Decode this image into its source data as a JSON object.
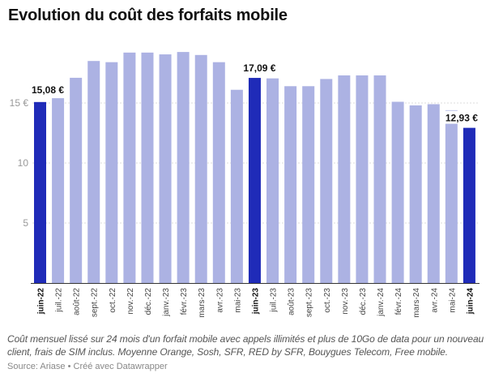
{
  "chart_data": {
    "type": "bar",
    "title": "Evolution du coût des forfaits mobile",
    "categories": [
      "juin-22",
      "juil.-22",
      "août-22",
      "sept.-22",
      "oct.-22",
      "nov.-22",
      "déc.-22",
      "janv.-23",
      "févr.-23",
      "mars-23",
      "avr.-23",
      "mai-23",
      "juin-23",
      "juil.-23",
      "août-23",
      "sept.-23",
      "oct.-23",
      "nov.-23",
      "déc.-23",
      "janv.-24",
      "févr.-24",
      "mars-24",
      "avr.-24",
      "mai-24",
      "juin-24"
    ],
    "values": [
      15.08,
      15.4,
      17.1,
      18.5,
      18.4,
      19.2,
      19.2,
      19.05,
      19.25,
      19.0,
      18.4,
      16.1,
      17.09,
      17.05,
      16.4,
      16.4,
      17.0,
      17.3,
      17.3,
      17.3,
      15.1,
      14.8,
      14.9,
      14.4,
      12.93
    ],
    "highlighted": [
      "juin-22",
      "juin-23",
      "juin-24"
    ],
    "data_labels": {
      "juin-22": "15,08 €",
      "juin-23": "17,09 €",
      "juin-24": "12,93 €"
    },
    "yticks": [
      {
        "value": 5,
        "label": "5"
      },
      {
        "value": 10,
        "label": "10"
      },
      {
        "value": 15,
        "label": "15 €"
      }
    ],
    "ylim": [
      0,
      20
    ],
    "grid": true,
    "colors": {
      "highlight": "#1f2bb8",
      "default": "#acb2e3"
    },
    "xlabel": "",
    "ylabel": ""
  },
  "notes": "Coût mensuel lissé sur 24 mois d'un forfait mobile avec appels illimités et plus de 10Go de data pour un nouveau client, frais de SIM inclus. Moyenne Orange, Sosh, SFR, RED by SFR, Bouygues Telecom, Free mobile.",
  "source": "Source: Ariase • Créé avec Datawrapper"
}
